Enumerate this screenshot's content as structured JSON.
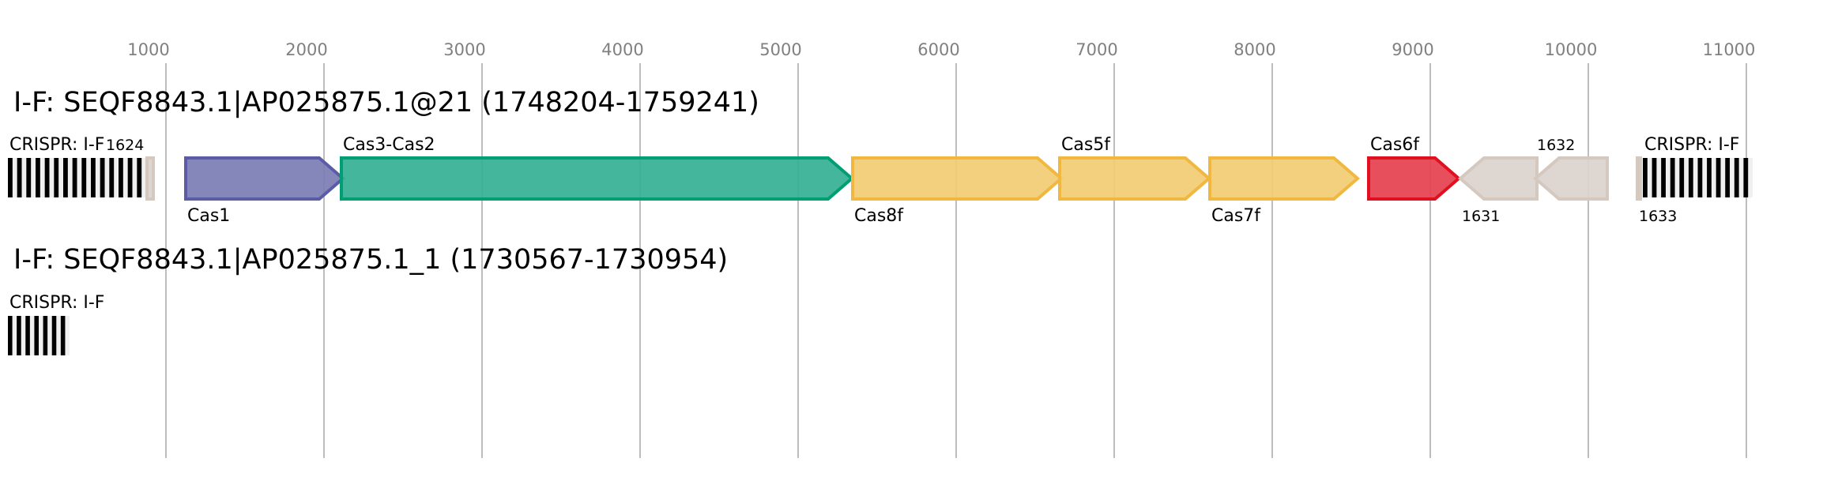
{
  "axis": {
    "unit": "bp",
    "ticks": [
      1000,
      2000,
      3000,
      4000,
      5000,
      6000,
      7000,
      8000,
      9000,
      10000,
      11000
    ],
    "tick_labels": [
      "1000",
      "2000",
      "3000",
      "4000",
      "5000",
      "6000",
      "7000",
      "8000",
      "9000",
      "10000",
      "11000"
    ],
    "grid": true,
    "tick_color": "#808080",
    "grid_color": "#bdbdbd"
  },
  "tracks": [
    {
      "title": "I-F: SEQF8843.1|AP025875.1@21 (1748204-1759241)",
      "features": [
        {
          "type": "crispr",
          "label": "CRISPR: I-F",
          "label_pos": "above",
          "start": 0,
          "end": 875,
          "repeats": 15
        },
        {
          "type": "gene",
          "label": "1624",
          "small": true,
          "label_pos": "above",
          "start": 880,
          "end": 920,
          "strand": "none",
          "fill": "#dad3cd",
          "stroke": "#d5c8bf"
        },
        {
          "type": "gene",
          "label": "Cas1",
          "label_pos": "below",
          "start": 1125,
          "end": 2120,
          "strand": "+",
          "fill": "#7b7db5",
          "stroke": "#5a5ca6"
        },
        {
          "type": "gene",
          "label": "Cas3-Cas2",
          "label_pos": "above",
          "start": 2110,
          "end": 5340,
          "strand": "+",
          "fill": "#33b092",
          "stroke": "#009e73"
        },
        {
          "type": "gene",
          "label": "Cas8f",
          "label_pos": "below",
          "start": 5345,
          "end": 6665,
          "strand": "+",
          "fill": "#f2cc72",
          "stroke": "#f0b840"
        },
        {
          "type": "gene",
          "label": "Cas5f",
          "label_pos": "above",
          "start": 6655,
          "end": 7600,
          "strand": "+",
          "fill": "#f2cc72",
          "stroke": "#f0b840"
        },
        {
          "type": "gene",
          "label": "Cas7f",
          "label_pos": "below",
          "start": 7605,
          "end": 8540,
          "strand": "+",
          "fill": "#f2cc72",
          "stroke": "#f0b840"
        },
        {
          "type": "gene",
          "label": "Cas6f",
          "label_pos": "above",
          "start": 8610,
          "end": 9180,
          "strand": "+",
          "fill": "#e5404f",
          "stroke": "#e01020"
        },
        {
          "type": "gene",
          "label": "1631",
          "small": true,
          "label_pos": "below",
          "start": 9190,
          "end": 9675,
          "strand": "-",
          "fill": "#dad3cd",
          "stroke": "#d5c8bf"
        },
        {
          "type": "gene",
          "label": "1632",
          "small": true,
          "label_pos": "above",
          "start": 9665,
          "end": 10120,
          "strand": "-",
          "fill": "#dad3cd",
          "stroke": "#d5c8bf"
        },
        {
          "type": "gene",
          "label": "1633",
          "small": true,
          "label_pos": "below",
          "start": 10310,
          "end": 10330,
          "strand": "none",
          "fill": "#dad3cd",
          "stroke": "#d5c8bf"
        },
        {
          "type": "crispr",
          "label": "CRISPR: I-F",
          "label_pos": "above",
          "start": 10345,
          "end": 11040,
          "repeats": 12
        }
      ]
    },
    {
      "title": "I-F: SEQF8843.1|AP025875.1_1 (1730567-1730954)",
      "features": [
        {
          "type": "crispr",
          "label": "CRISPR: I-F",
          "label_pos": "above",
          "start": 0,
          "end": 390,
          "repeats": 7
        }
      ]
    }
  ]
}
